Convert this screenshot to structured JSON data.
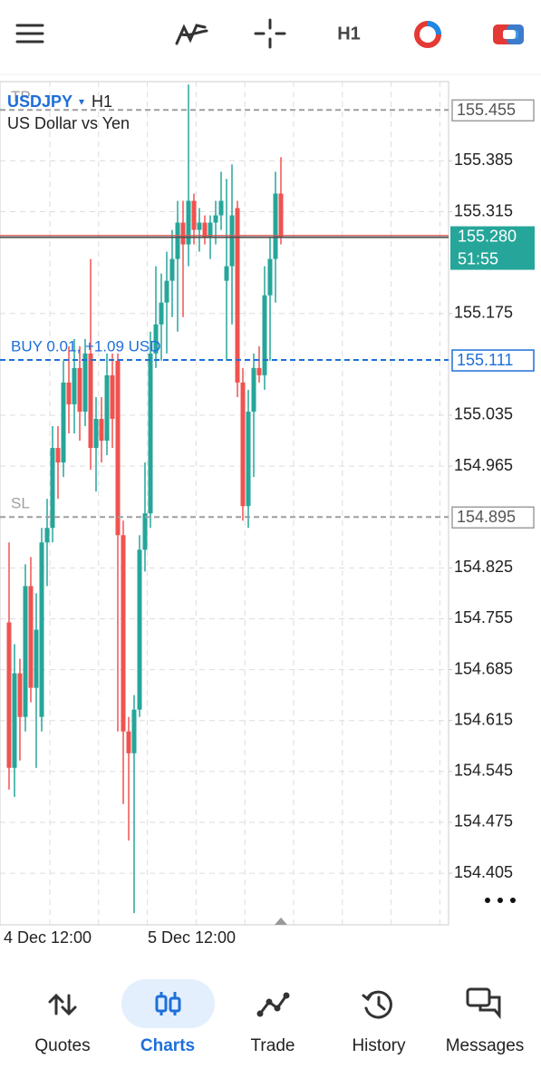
{
  "toolbar": {
    "timeframe": "H1"
  },
  "chart_data": {
    "type": "candlestick",
    "symbol": "USDJPY",
    "timeframe": "H1",
    "description": "US Dollar vs Yen",
    "ylim": [
      154.334,
      155.494
    ],
    "yticks": [
      155.385,
      155.315,
      155.175,
      155.035,
      154.965,
      154.825,
      154.755,
      154.685,
      154.615,
      154.545,
      154.475,
      154.405
    ],
    "x_labels": [
      "4 Dec 12:00",
      "5 Dec 12:00"
    ],
    "grid": true,
    "up_color": "#26a69a",
    "down_color": "#ef5350",
    "open": [
      154.75,
      154.55,
      154.68,
      154.62,
      154.8,
      154.66,
      154.62,
      154.86,
      154.88,
      154.99,
      154.97,
      155.08,
      155.05,
      155.1,
      155.04,
      155.12,
      154.99,
      155.03,
      155.0,
      155.09,
      155.11,
      154.87,
      154.6,
      154.57,
      154.63,
      154.85,
      154.9,
      155.12,
      155.16,
      155.19,
      155.22,
      155.25,
      155.3,
      155.27,
      155.33,
      155.29,
      155.3,
      155.28,
      155.3,
      155.31,
      155.22,
      155.24,
      155.32,
      155.08,
      154.91,
      155.04,
      155.1,
      155.09,
      155.2,
      155.25,
      155.34
    ],
    "high": [
      154.86,
      154.72,
      154.7,
      154.83,
      154.84,
      154.79,
      154.88,
      154.92,
      155.02,
      155.02,
      155.11,
      155.13,
      155.14,
      155.13,
      155.14,
      155.25,
      155.06,
      155.06,
      155.12,
      155.12,
      155.12,
      154.89,
      154.62,
      154.65,
      154.87,
      154.97,
      155.15,
      155.24,
      155.23,
      155.26,
      155.29,
      155.33,
      155.33,
      155.49,
      155.34,
      155.32,
      155.31,
      155.31,
      155.33,
      155.37,
      155.36,
      155.38,
      155.33,
      155.1,
      155.07,
      155.12,
      155.13,
      155.24,
      155.28,
      155.37,
      155.39
    ],
    "low": [
      154.52,
      154.51,
      154.56,
      154.6,
      154.64,
      154.55,
      154.6,
      154.8,
      154.86,
      154.92,
      154.95,
      155.01,
      155.01,
      155.0,
      155.02,
      154.96,
      154.93,
      154.97,
      154.98,
      154.99,
      154.6,
      154.5,
      154.45,
      154.35,
      154.62,
      154.82,
      154.88,
      155.1,
      155.11,
      155.12,
      155.17,
      155.15,
      155.17,
      155.24,
      155.27,
      155.26,
      155.27,
      155.25,
      155.27,
      155.29,
      155.11,
      155.16,
      155.06,
      154.89,
      154.88,
      154.95,
      155.08,
      155.07,
      155.11,
      155.19,
      155.27
    ],
    "close": [
      154.55,
      154.68,
      154.62,
      154.8,
      154.66,
      154.74,
      154.86,
      154.88,
      154.99,
      154.97,
      155.08,
      155.05,
      155.1,
      155.04,
      155.12,
      154.99,
      155.03,
      155.0,
      155.09,
      155.03,
      154.87,
      154.6,
      154.57,
      154.63,
      154.85,
      154.9,
      155.12,
      155.16,
      155.19,
      155.22,
      155.25,
      155.3,
      155.27,
      155.33,
      155.29,
      155.3,
      155.28,
      155.3,
      155.31,
      155.33,
      155.24,
      155.31,
      155.08,
      154.91,
      155.04,
      155.1,
      155.09,
      155.2,
      155.25,
      155.34,
      155.28
    ],
    "levels": [
      {
        "name": "TP",
        "price": 155.455,
        "color": "#9e9e9e"
      },
      {
        "name": "BUY 0.01,  +1.09 USD",
        "price": 155.111,
        "color": "#1e6fd9"
      },
      {
        "name": "SL",
        "price": 154.895,
        "color": "#9e9e9e"
      }
    ],
    "bid": {
      "price": {
        "value": 155.28,
        "label": "155.280"
      },
      "timer": "51:55",
      "color": "#26a69a"
    }
  },
  "nav": [
    "Quotes",
    "Charts",
    "Trade",
    "History",
    "Messages"
  ]
}
